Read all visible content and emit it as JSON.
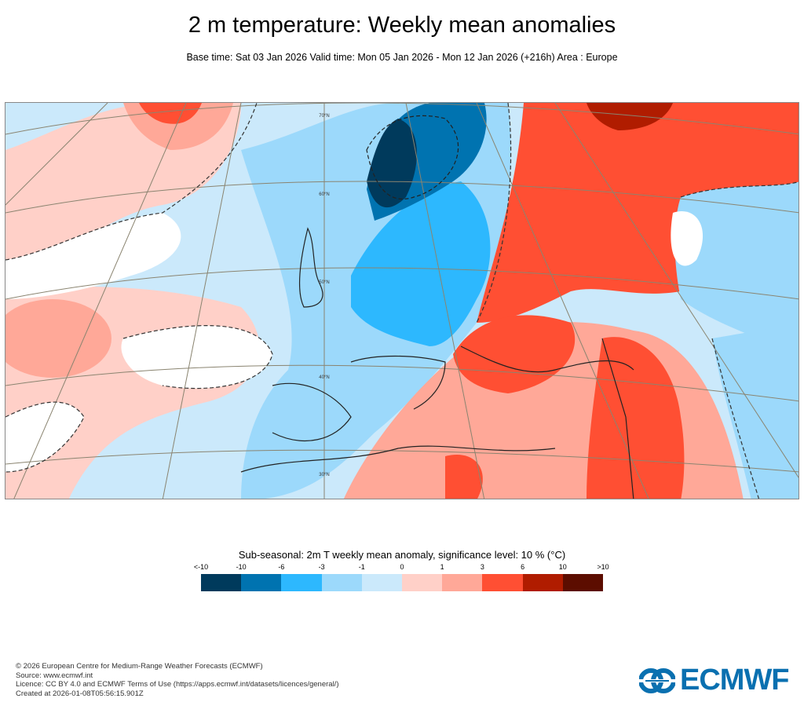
{
  "header": {
    "title": "2 m temperature: Weekly mean anomalies",
    "subtitle": "Base time: Sat 03 Jan 2026 Valid time: Mon 05 Jan 2026 - Mon 12 Jan 2026 (+216h) Area : Europe"
  },
  "map": {
    "latitude_labels": [
      "70°N",
      "60°N",
      "50°N",
      "40°N",
      "30°N"
    ]
  },
  "legend": {
    "title": "Sub-seasonal: 2m T weekly mean anomaly, significance level: 10 % (°C)",
    "ticks": [
      "<-10",
      "-10",
      "-6",
      "-3",
      "-1",
      "0",
      "1",
      "3",
      "6",
      "10",
      ">10"
    ],
    "colors": [
      "#003a5c",
      "#0073b0",
      "#2db8fe",
      "#9cd9fb",
      "#cbe9fb",
      "#ffd0c8",
      "#ffa898",
      "#ff4f33",
      "#b01c00",
      "#5c0d00"
    ]
  },
  "footer": {
    "lines": [
      "© 2026 European Centre for Medium-Range Weather Forecasts (ECMWF)",
      "Source: www.ecmwf.int",
      "Licence: CC BY 4.0 and ECMWF Terms of Use (https://apps.ecmwf.int/datasets/licences/general/)",
      "Created at 2026-01-08T05:56:15.901Z"
    ],
    "logo_text": "ECMWF"
  }
}
